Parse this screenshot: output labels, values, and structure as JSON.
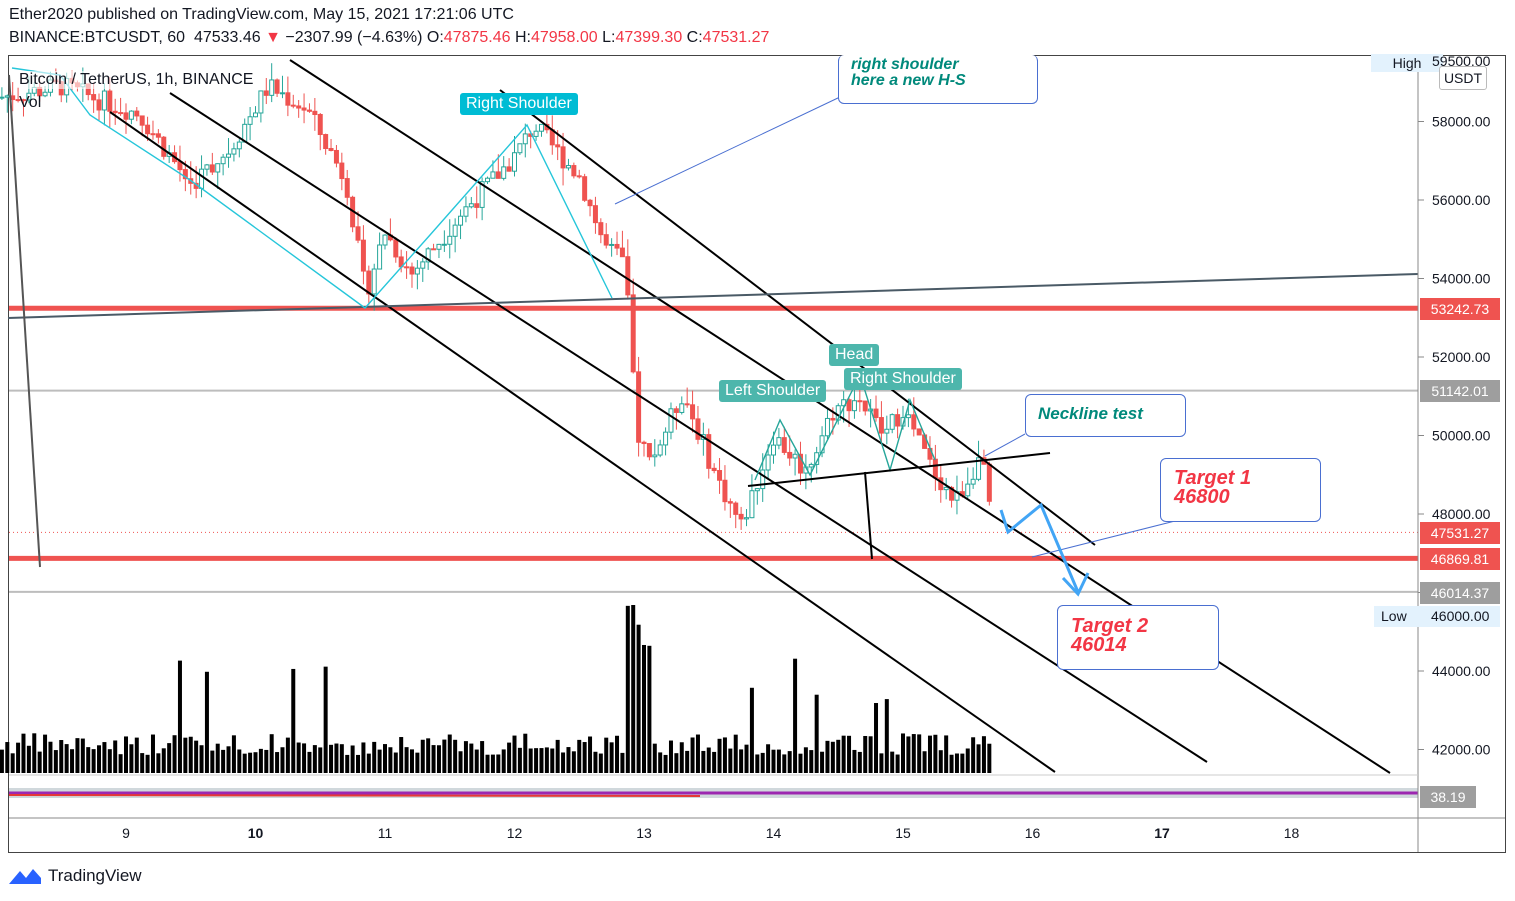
{
  "header": {
    "publish_line": "Ether2020 published on TradingView.com, May 15, 2021 17:21:06 UTC",
    "symbol": "BINANCE:BTCUSDT, 60",
    "last": "47533.46",
    "change_arrow": "▼",
    "change": "−2307.99 (−4.63%)",
    "o_label": "O:",
    "o": "47875.46",
    "h_label": "H:",
    "h": "47958.00",
    "l_label": "L:",
    "l": "47399.30",
    "c_label": "C:",
    "c": "47531.27"
  },
  "legend": {
    "title": "Bitcoin / TetherUS, 1h, BINANCE",
    "vol": "Vol"
  },
  "currency_badge": "USDT",
  "price_labels": {
    "high": "High",
    "high_value": "59500.00",
    "low": "Low",
    "low_value": "46000.00",
    "level_red": "53242.73",
    "level_gray_1": "51142.01",
    "current": "47531.27",
    "level_red_2": "46869.81",
    "level_gray_2": "46014.37",
    "osc_value": "38.19"
  },
  "annotations": {
    "right_shoulder_1": "Right Shoulder",
    "left_shoulder": "Left Shoulder",
    "head": "Head",
    "right_shoulder_2": "Right Shoulder",
    "note_line1": "right shoulder",
    "note_line2": "here a new H-S",
    "neckline_test": "Neckline test",
    "target1_title": "Target 1",
    "target1_value": "46800",
    "target2_title": "Target 2",
    "target2_value": "46014"
  },
  "colors": {
    "up": "#26a69a",
    "down": "#ef5350",
    "red_level": "#ef5350",
    "label_teal": "#26a69a",
    "label_cyan": "#00bcd4",
    "note_text": "#00897b",
    "target_text": "#f23645",
    "arrow_blue": "#42a5f5"
  },
  "footer": {
    "brand": "TradingView"
  },
  "chart_data": {
    "type": "candlestick",
    "title": "Bitcoin / TetherUS, 1h, BINANCE",
    "xlabel": "",
    "ylabel": "",
    "x_ticks": [
      "9",
      "10",
      "11",
      "12",
      "13",
      "14",
      "15",
      "16",
      "17",
      "18"
    ],
    "y_ticks": [
      42000,
      44000,
      46000,
      48000,
      50000,
      52000,
      54000,
      56000,
      58000
    ],
    "ylim": [
      41000,
      59500
    ],
    "price_path": [
      {
        "day": 8.0,
        "price": 58600
      },
      {
        "day": 8.5,
        "price": 58900
      },
      {
        "day": 9.1,
        "price": 58200
      },
      {
        "day": 9.5,
        "price": 56400
      },
      {
        "day": 9.8,
        "price": 57300
      },
      {
        "day": 10.1,
        "price": 58900
      },
      {
        "day": 10.4,
        "price": 58300
      },
      {
        "day": 10.7,
        "price": 56500
      },
      {
        "day": 10.85,
        "price": 53600
      },
      {
        "day": 11.0,
        "price": 55200
      },
      {
        "day": 11.2,
        "price": 54100
      },
      {
        "day": 11.6,
        "price": 55700
      },
      {
        "day": 12.0,
        "price": 57100
      },
      {
        "day": 12.15,
        "price": 57900
      },
      {
        "day": 12.5,
        "price": 56600
      },
      {
        "day": 12.7,
        "price": 54800
      },
      {
        "day": 12.85,
        "price": 54400
      },
      {
        "day": 12.95,
        "price": 50100
      },
      {
        "day": 13.05,
        "price": 49300
      },
      {
        "day": 13.3,
        "price": 51100
      },
      {
        "day": 13.55,
        "price": 49000
      },
      {
        "day": 13.75,
        "price": 47700
      },
      {
        "day": 14.0,
        "price": 50000
      },
      {
        "day": 14.25,
        "price": 49100
      },
      {
        "day": 14.45,
        "price": 50600
      },
      {
        "day": 14.65,
        "price": 51000
      },
      {
        "day": 14.85,
        "price": 50000
      },
      {
        "day": 15.0,
        "price": 50700
      },
      {
        "day": 15.2,
        "price": 49300
      },
      {
        "day": 15.4,
        "price": 48300
      },
      {
        "day": 15.6,
        "price": 49500
      },
      {
        "day": 15.7,
        "price": 47531
      }
    ],
    "horizontal_levels": [
      53242.73,
      51142.01,
      46869.81,
      46014.37
    ],
    "targets": [
      46800,
      46014
    ]
  }
}
